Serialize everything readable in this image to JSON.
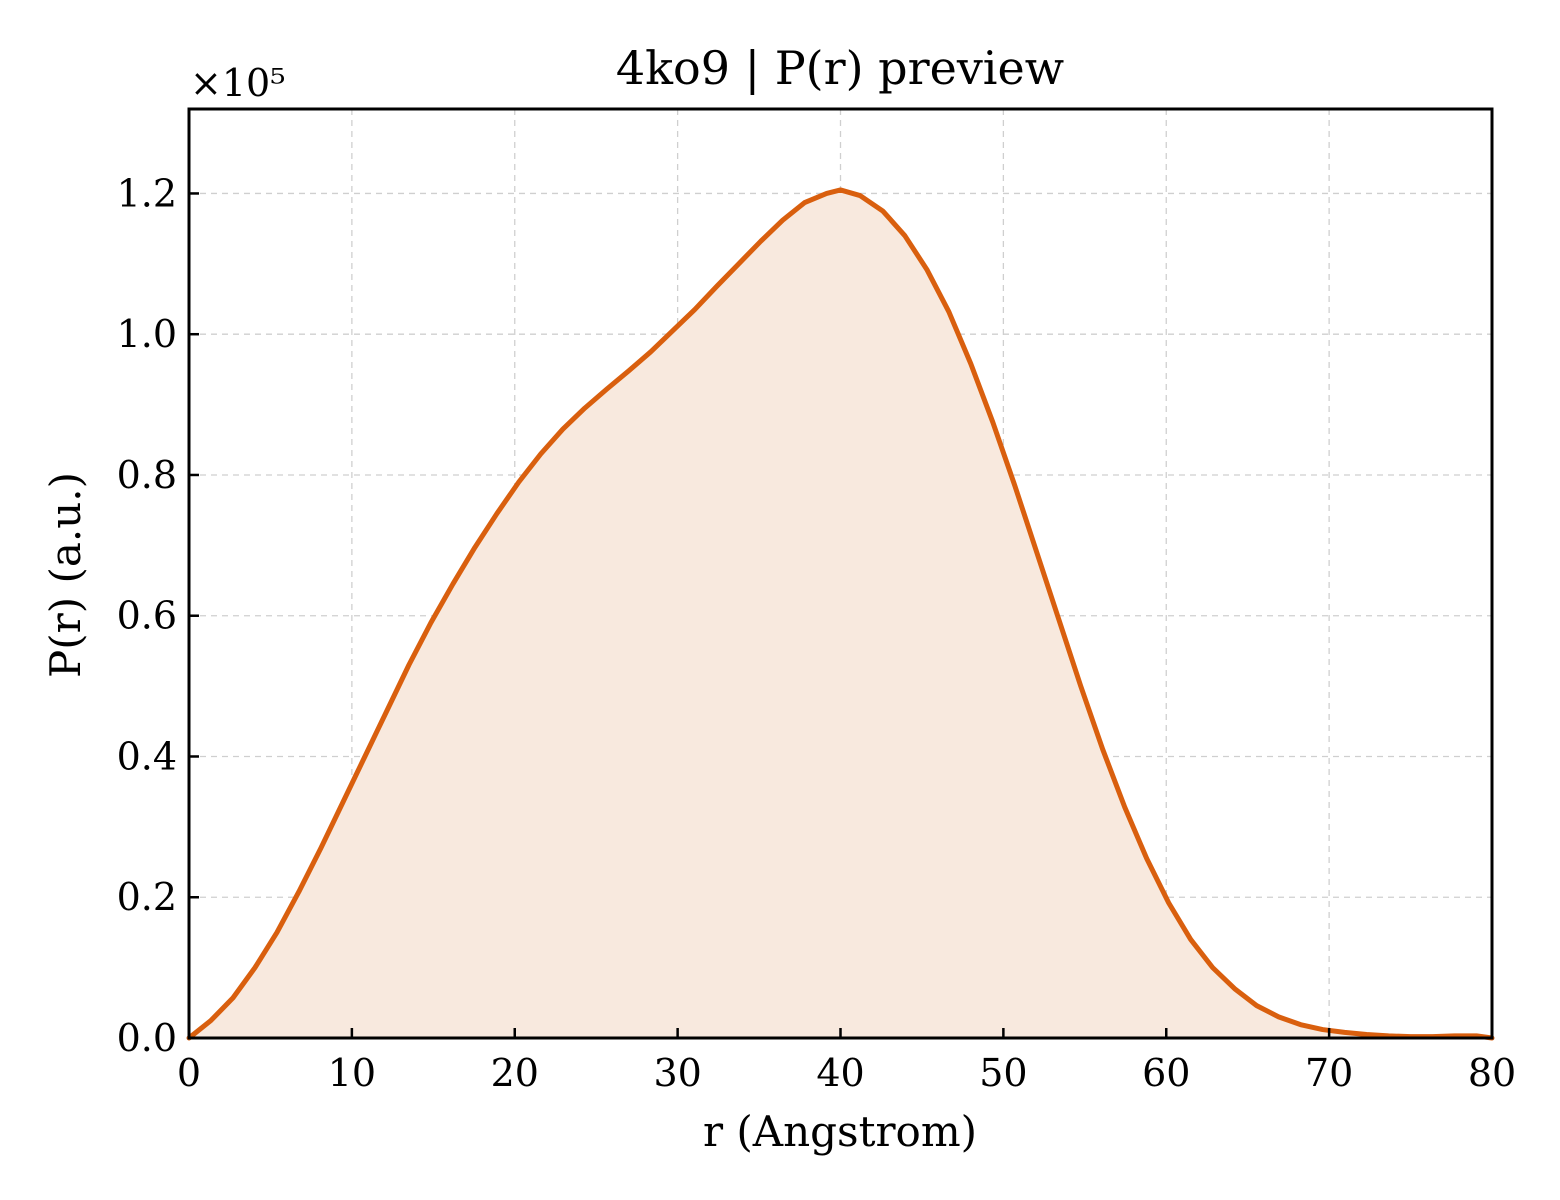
{
  "chart_data": {
    "type": "area",
    "title": "4ko9 | P(r) preview",
    "xlabel": "r (Angstrom)",
    "ylabel": "P(r) (a.u.)",
    "offset_label": "×10⁵",
    "xlim": [
      0,
      80
    ],
    "ylim": [
      0,
      1.32
    ],
    "xticks": [
      0,
      10,
      20,
      30,
      40,
      50,
      60,
      70,
      80
    ],
    "yticks": [
      0.0,
      0.2,
      0.4,
      0.6,
      0.8,
      1.0,
      1.2
    ],
    "ytick_labels": [
      "0.0",
      "0.2",
      "0.4",
      "0.6",
      "0.8",
      "1.0",
      "1.2"
    ],
    "grid": true,
    "colors": {
      "line": "#d95f0e",
      "fill": "#f8e9de"
    },
    "series": [
      {
        "x": [
          0,
          1.35,
          2.7,
          4.05,
          5.4,
          6.75,
          8.1,
          9.45,
          10.8,
          12.15,
          13.5,
          14.85,
          16.2,
          17.55,
          18.9,
          20.25,
          21.6,
          22.95,
          24.3,
          25.65,
          27.0,
          28.35,
          29.7,
          31.05,
          32.4,
          33.75,
          35.1,
          36.45,
          37.8,
          39.15,
          40.0,
          41.2,
          42.6,
          43.95,
          45.3,
          46.65,
          48.0,
          49.35,
          50.7,
          52.05,
          53.4,
          54.75,
          56.1,
          57.45,
          58.8,
          60.15,
          61.5,
          62.85,
          64.2,
          65.55,
          66.9,
          68.25,
          69.6,
          70.95,
          72.3,
          73.65,
          75.0,
          76.35,
          77.7,
          79.05,
          80.0
        ],
        "y": [
          0.0,
          0.025,
          0.057,
          0.1,
          0.15,
          0.208,
          0.27,
          0.335,
          0.4,
          0.465,
          0.53,
          0.59,
          0.645,
          0.697,
          0.745,
          0.79,
          0.83,
          0.865,
          0.895,
          0.922,
          0.948,
          0.975,
          1.005,
          1.035,
          1.068,
          1.1,
          1.132,
          1.162,
          1.187,
          1.2,
          1.205,
          1.197,
          1.175,
          1.14,
          1.092,
          1.032,
          0.958,
          0.875,
          0.785,
          0.69,
          0.595,
          0.5,
          0.41,
          0.328,
          0.255,
          0.192,
          0.14,
          0.1,
          0.07,
          0.046,
          0.03,
          0.019,
          0.012,
          0.008,
          0.005,
          0.003,
          0.002,
          0.002,
          0.003,
          0.003,
          0.0
        ]
      }
    ]
  }
}
